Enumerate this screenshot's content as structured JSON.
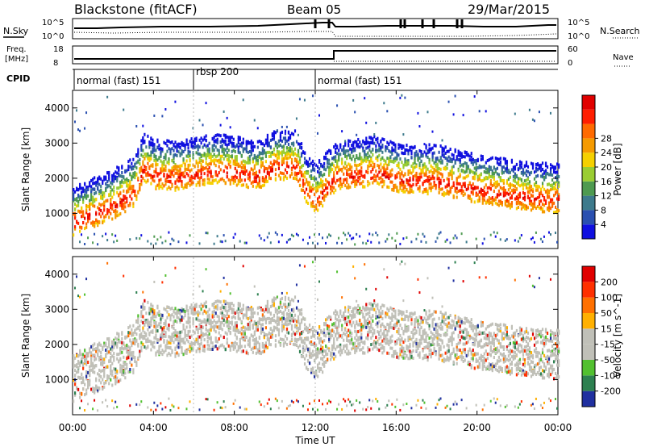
{
  "header": {
    "station": "Blackstone (fitACF)",
    "beam": "Beam 05",
    "date": "29/Mar/2015"
  },
  "noise_panel": {
    "left_label": "N.Sky",
    "right_label": "N.Search",
    "left_ticks": [
      "10^5",
      "10^0"
    ],
    "right_ticks": [
      "10^5",
      "10^0"
    ]
  },
  "freq_panel": {
    "left_label_line1": "Freq.",
    "left_label_line2": "[MHz]",
    "right_label": "Nave",
    "left_ticks": [
      "18",
      "8"
    ],
    "right_ticks": [
      "60",
      "0"
    ]
  },
  "cpid": {
    "label": "CPID",
    "segments": [
      {
        "name": "normal (fast) 151",
        "start_h": 0,
        "end_h": 6
      },
      {
        "name": "rbsp 200",
        "start_h": 6,
        "end_h": 12
      },
      {
        "name": "normal (fast) 151",
        "start_h": 12,
        "end_h": 24
      }
    ]
  },
  "chart_data": [
    {
      "type": "heatmap",
      "title": "",
      "xlabel": "Time UT",
      "ylabel": "Slant Range [km]",
      "xlim": [
        0,
        24
      ],
      "ylim": [
        0,
        4500
      ],
      "x_ticks": [
        "00:00",
        "04:00",
        "08:00",
        "12:00",
        "16:00",
        "20:00",
        "00:00"
      ],
      "y_ticks": [
        "1000",
        "2000",
        "3000",
        "4000"
      ],
      "colorbar": {
        "label": "Power [dB]",
        "tick_labels": [
          "4",
          "8",
          "12",
          "16",
          "20",
          "24",
          "28"
        ],
        "colors": [
          "#1010e0",
          "#2a50b0",
          "#3d7a8c",
          "#4e9a50",
          "#9acd32",
          "#f5d000",
          "#f59a00",
          "#ff6a00",
          "#ff1e00",
          "#e00000"
        ]
      },
      "scatter_band": [
        {
          "t": 0.0,
          "r": 780
        },
        {
          "t": 1.0,
          "r": 1000
        },
        {
          "t": 2.0,
          "r": 1250
        },
        {
          "t": 3.0,
          "r": 1600
        },
        {
          "t": 3.5,
          "r": 2300
        },
        {
          "t": 4.0,
          "r": 2100
        },
        {
          "t": 5.0,
          "r": 2050
        },
        {
          "t": 6.0,
          "r": 2150
        },
        {
          "t": 7.0,
          "r": 2250
        },
        {
          "t": 8.0,
          "r": 2200
        },
        {
          "t": 9.0,
          "r": 2050
        },
        {
          "t": 10.0,
          "r": 2350
        },
        {
          "t": 11.0,
          "r": 2350
        },
        {
          "t": 11.5,
          "r": 1700
        },
        {
          "t": 12.0,
          "r": 1400
        },
        {
          "t": 13.0,
          "r": 2050
        },
        {
          "t": 14.0,
          "r": 2100
        },
        {
          "t": 15.0,
          "r": 2200
        },
        {
          "t": 16.0,
          "r": 2000
        },
        {
          "t": 17.0,
          "r": 1950
        },
        {
          "t": 18.0,
          "r": 1950
        },
        {
          "t": 19.0,
          "r": 1800
        },
        {
          "t": 20.0,
          "r": 1700
        },
        {
          "t": 21.0,
          "r": 1600
        },
        {
          "t": 22.0,
          "r": 1500
        },
        {
          "t": 23.0,
          "r": 1450
        },
        {
          "t": 24.0,
          "r": 1400
        }
      ]
    },
    {
      "type": "heatmap",
      "title": "",
      "xlabel": "Time UT",
      "ylabel": "Slant Range [km]",
      "xlim": [
        0,
        24
      ],
      "ylim": [
        0,
        4500
      ],
      "x_ticks": [
        "00:00",
        "04:00",
        "08:00",
        "12:00",
        "16:00",
        "20:00",
        "00:00"
      ],
      "y_ticks": [
        "1000",
        "2000",
        "3000",
        "4000"
      ],
      "colorbar": {
        "label": "Velocity [m s^-1]",
        "tick_labels": [
          "200",
          "100",
          "50",
          "15",
          "-15",
          "-50",
          "-100",
          "-200"
        ],
        "colors": [
          "#2030a0",
          "#2d8050",
          "#52c030",
          "#c0c0b8",
          "#c0c0b8",
          "#ffb000",
          "#ff7000",
          "#ff3000",
          "#e00000"
        ]
      }
    }
  ]
}
